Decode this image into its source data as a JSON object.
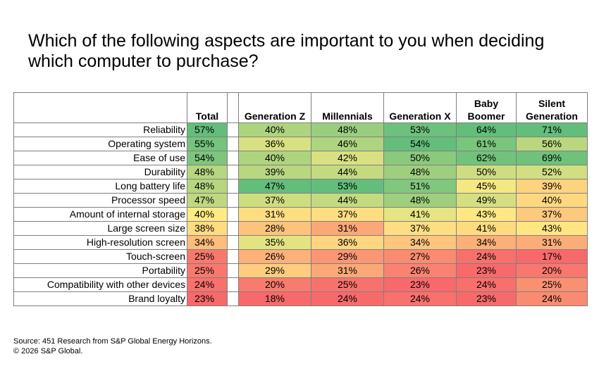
{
  "title": "Which of the following aspects are important to you when deciding which computer to purchase?",
  "chart_data": {
    "type": "heatmap",
    "title": "Which of the following aspects are important to you when deciding which computer to purchase?",
    "columns": [
      "Total",
      "Generation Z",
      "Millennials",
      "Generation X",
      "Baby Boomer",
      "Silent Generation"
    ],
    "rows": [
      {
        "label": "Reliability",
        "values": [
          "57%",
          "40%",
          "48%",
          "53%",
          "64%",
          "71%"
        ]
      },
      {
        "label": "Operating system",
        "values": [
          "55%",
          "36%",
          "46%",
          "54%",
          "61%",
          "56%"
        ]
      },
      {
        "label": "Ease of use",
        "values": [
          "54%",
          "40%",
          "42%",
          "50%",
          "62%",
          "69%"
        ]
      },
      {
        "label": "Durability",
        "values": [
          "48%",
          "39%",
          "44%",
          "48%",
          "50%",
          "52%"
        ]
      },
      {
        "label": "Long battery life",
        "values": [
          "48%",
          "47%",
          "53%",
          "51%",
          "45%",
          "39%"
        ]
      },
      {
        "label": "Processor speed",
        "values": [
          "47%",
          "37%",
          "44%",
          "48%",
          "49%",
          "40%"
        ]
      },
      {
        "label": "Amount of internal storage",
        "values": [
          "40%",
          "31%",
          "37%",
          "41%",
          "43%",
          "37%"
        ]
      },
      {
        "label": "Large screen size",
        "values": [
          "38%",
          "28%",
          "31%",
          "37%",
          "41%",
          "43%"
        ]
      },
      {
        "label": "High-resolution screen",
        "values": [
          "34%",
          "35%",
          "36%",
          "34%",
          "34%",
          "31%"
        ]
      },
      {
        "label": "Touch-screen",
        "values": [
          "25%",
          "26%",
          "29%",
          "27%",
          "24%",
          "17%"
        ]
      },
      {
        "label": "Portability",
        "values": [
          "25%",
          "29%",
          "31%",
          "26%",
          "23%",
          "20%"
        ]
      },
      {
        "label": "Compatibility with other devices",
        "values": [
          "24%",
          "20%",
          "25%",
          "23%",
          "24%",
          "25%"
        ]
      },
      {
        "label": "Brand loyalty",
        "values": [
          "23%",
          "18%",
          "24%",
          "24%",
          "23%",
          "24%"
        ]
      }
    ],
    "color_scale": {
      "low": "#f8696b",
      "mid": "#ffeb84",
      "high": "#63be7b"
    }
  },
  "footer": {
    "source": "Source: 451 Research from S&P Global Energy Horizons.",
    "copyright": "© 2026 S&P Global."
  }
}
